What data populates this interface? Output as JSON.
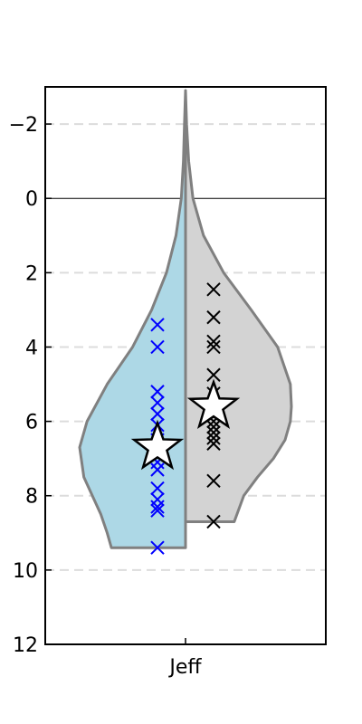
{
  "chart_data": {
    "type": "violin",
    "categories": [
      "Jeff"
    ],
    "ylim": [
      12,
      -3
    ],
    "y_inverted": true,
    "yticks": [
      -2,
      0,
      2,
      4,
      6,
      8,
      10,
      12
    ],
    "ytick_labels": [
      "−2",
      "0",
      "2",
      "4",
      "6",
      "8",
      "10",
      "12"
    ],
    "grid": "horizontal dashed",
    "reference_line_y": 0,
    "series": [
      {
        "side": "left",
        "fill": "#add8e6",
        "marker_color": "#0000ff",
        "points": [
          3.4,
          4.0,
          5.2,
          5.5,
          5.8,
          6.1,
          6.5,
          6.8,
          7.1,
          7.3,
          7.8,
          8.1,
          8.3,
          8.4,
          9.4
        ],
        "mean": 6.7,
        "violin_range": [
          -2.9,
          9.4
        ],
        "density": [
          [
            -2.9,
            0.0
          ],
          [
            -2.0,
            0.01
          ],
          [
            -1.0,
            0.02
          ],
          [
            0.0,
            0.04
          ],
          [
            1.0,
            0.09
          ],
          [
            2.0,
            0.18
          ],
          [
            3.0,
            0.32
          ],
          [
            4.0,
            0.5
          ],
          [
            5.0,
            0.74
          ],
          [
            6.0,
            0.93
          ],
          [
            6.7,
            1.0
          ],
          [
            7.5,
            0.96
          ],
          [
            8.0,
            0.88
          ],
          [
            8.5,
            0.8
          ],
          [
            9.0,
            0.74
          ],
          [
            9.4,
            0.7
          ]
        ]
      },
      {
        "side": "right",
        "fill": "#d3d3d3",
        "marker_color": "#000000",
        "points": [
          2.45,
          3.2,
          3.85,
          4.0,
          4.75,
          5.25,
          5.6,
          6.0,
          6.15,
          6.3,
          6.45,
          6.6,
          7.6,
          8.7
        ],
        "mean": 5.6,
        "violin_range": [
          -2.9,
          8.7
        ],
        "density": [
          [
            -2.9,
            0.0
          ],
          [
            -2.0,
            0.01
          ],
          [
            -1.0,
            0.03
          ],
          [
            0.0,
            0.07
          ],
          [
            1.0,
            0.17
          ],
          [
            2.0,
            0.36
          ],
          [
            3.0,
            0.62
          ],
          [
            4.0,
            0.87
          ],
          [
            5.0,
            0.99
          ],
          [
            5.6,
            1.0
          ],
          [
            6.0,
            0.99
          ],
          [
            6.5,
            0.94
          ],
          [
            7.0,
            0.83
          ],
          [
            7.5,
            0.68
          ],
          [
            8.0,
            0.55
          ],
          [
            8.7,
            0.46
          ]
        ]
      }
    ]
  }
}
